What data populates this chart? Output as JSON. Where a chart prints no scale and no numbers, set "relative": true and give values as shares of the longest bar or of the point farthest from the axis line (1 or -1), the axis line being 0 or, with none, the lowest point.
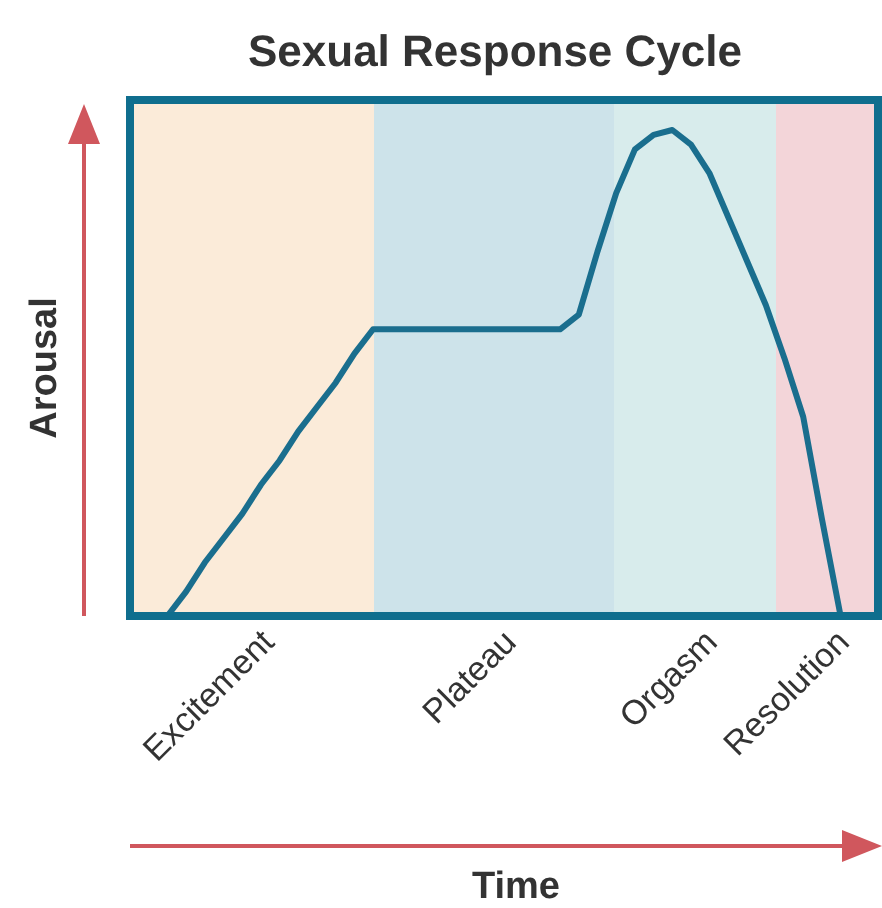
{
  "chart_data": {
    "type": "line",
    "title": "Sexual Response Cycle",
    "ylabel": "Arousal",
    "relative": true,
    "annotations": [
      "Excitement",
      "Plateau",
      "Orgasm",
      "Resolution",
      "Time"
    ],
    "categories": [
      null,
      null,
      null,
      null,
      null,
      null,
      null,
      null,
      null,
      null,
      null,
      null,
      null,
      null,
      null,
      null,
      null,
      null,
      null,
      null,
      null,
      null,
      null,
      null,
      null,
      null,
      null,
      null,
      null,
      null,
      null,
      null,
      null,
      null,
      null,
      null,
      null,
      null,
      null,
      null,
      null
    ],
    "series": [
      {
        "color": "#1a6e8e",
        "values": [
          null,
          null,
          0,
          0.05,
          0.11,
          0.16,
          0.21,
          0.27,
          0.32,
          0.38,
          0.43,
          0.48,
          0.54,
          0.59,
          0.59,
          0.59,
          0.59,
          0.59,
          0.59,
          0.59,
          0.59,
          0.59,
          0.59,
          0.59,
          0.62,
          0.75,
          0.87,
          0.96,
          0.99,
          1,
          0.97,
          0.91,
          0.82,
          0.73,
          0.64,
          0.53,
          0.41,
          0.2,
          0,
          null,
          null
        ]
      }
    ]
  }
}
